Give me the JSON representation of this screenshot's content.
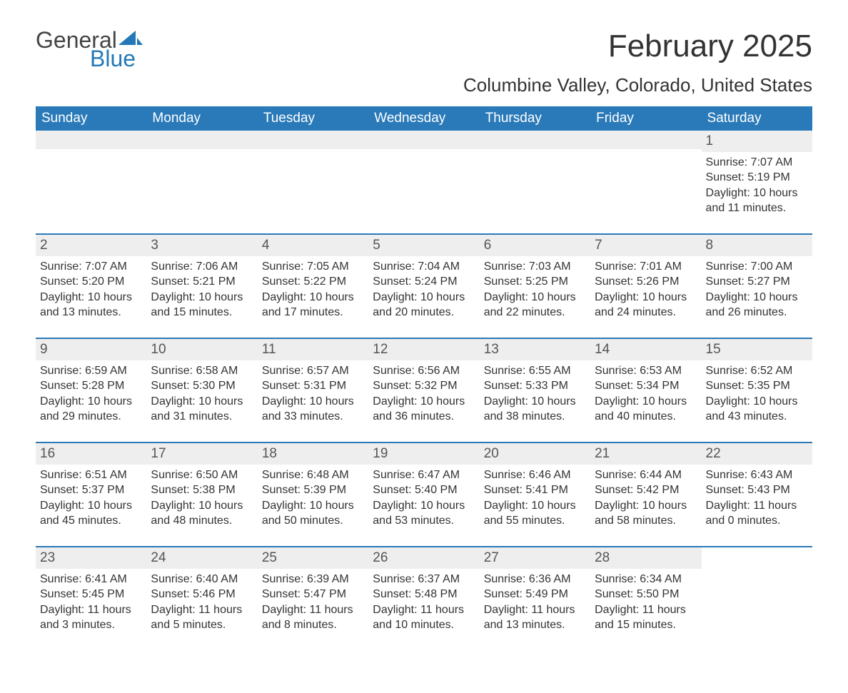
{
  "logo": {
    "text1": "General",
    "text2": "Blue",
    "shape_color": "#2478b8"
  },
  "title": "February 2025",
  "location": "Columbine Valley, Colorado, United States",
  "colors": {
    "header_bg": "#2a7ab9",
    "header_text": "#ffffff",
    "daynum_bg": "#eeeeee",
    "row_divider": "#2a7ab9",
    "text": "#333333"
  },
  "day_headers": [
    "Sunday",
    "Monday",
    "Tuesday",
    "Wednesday",
    "Thursday",
    "Friday",
    "Saturday"
  ],
  "weeks": [
    [
      null,
      null,
      null,
      null,
      null,
      null,
      {
        "n": "1",
        "sunrise": "Sunrise: 7:07 AM",
        "sunset": "Sunset: 5:19 PM",
        "daylight": "Daylight: 10 hours and 11 minutes."
      }
    ],
    [
      {
        "n": "2",
        "sunrise": "Sunrise: 7:07 AM",
        "sunset": "Sunset: 5:20 PM",
        "daylight": "Daylight: 10 hours and 13 minutes."
      },
      {
        "n": "3",
        "sunrise": "Sunrise: 7:06 AM",
        "sunset": "Sunset: 5:21 PM",
        "daylight": "Daylight: 10 hours and 15 minutes."
      },
      {
        "n": "4",
        "sunrise": "Sunrise: 7:05 AM",
        "sunset": "Sunset: 5:22 PM",
        "daylight": "Daylight: 10 hours and 17 minutes."
      },
      {
        "n": "5",
        "sunrise": "Sunrise: 7:04 AM",
        "sunset": "Sunset: 5:24 PM",
        "daylight": "Daylight: 10 hours and 20 minutes."
      },
      {
        "n": "6",
        "sunrise": "Sunrise: 7:03 AM",
        "sunset": "Sunset: 5:25 PM",
        "daylight": "Daylight: 10 hours and 22 minutes."
      },
      {
        "n": "7",
        "sunrise": "Sunrise: 7:01 AM",
        "sunset": "Sunset: 5:26 PM",
        "daylight": "Daylight: 10 hours and 24 minutes."
      },
      {
        "n": "8",
        "sunrise": "Sunrise: 7:00 AM",
        "sunset": "Sunset: 5:27 PM",
        "daylight": "Daylight: 10 hours and 26 minutes."
      }
    ],
    [
      {
        "n": "9",
        "sunrise": "Sunrise: 6:59 AM",
        "sunset": "Sunset: 5:28 PM",
        "daylight": "Daylight: 10 hours and 29 minutes."
      },
      {
        "n": "10",
        "sunrise": "Sunrise: 6:58 AM",
        "sunset": "Sunset: 5:30 PM",
        "daylight": "Daylight: 10 hours and 31 minutes."
      },
      {
        "n": "11",
        "sunrise": "Sunrise: 6:57 AM",
        "sunset": "Sunset: 5:31 PM",
        "daylight": "Daylight: 10 hours and 33 minutes."
      },
      {
        "n": "12",
        "sunrise": "Sunrise: 6:56 AM",
        "sunset": "Sunset: 5:32 PM",
        "daylight": "Daylight: 10 hours and 36 minutes."
      },
      {
        "n": "13",
        "sunrise": "Sunrise: 6:55 AM",
        "sunset": "Sunset: 5:33 PM",
        "daylight": "Daylight: 10 hours and 38 minutes."
      },
      {
        "n": "14",
        "sunrise": "Sunrise: 6:53 AM",
        "sunset": "Sunset: 5:34 PM",
        "daylight": "Daylight: 10 hours and 40 minutes."
      },
      {
        "n": "15",
        "sunrise": "Sunrise: 6:52 AM",
        "sunset": "Sunset: 5:35 PM",
        "daylight": "Daylight: 10 hours and 43 minutes."
      }
    ],
    [
      {
        "n": "16",
        "sunrise": "Sunrise: 6:51 AM",
        "sunset": "Sunset: 5:37 PM",
        "daylight": "Daylight: 10 hours and 45 minutes."
      },
      {
        "n": "17",
        "sunrise": "Sunrise: 6:50 AM",
        "sunset": "Sunset: 5:38 PM",
        "daylight": "Daylight: 10 hours and 48 minutes."
      },
      {
        "n": "18",
        "sunrise": "Sunrise: 6:48 AM",
        "sunset": "Sunset: 5:39 PM",
        "daylight": "Daylight: 10 hours and 50 minutes."
      },
      {
        "n": "19",
        "sunrise": "Sunrise: 6:47 AM",
        "sunset": "Sunset: 5:40 PM",
        "daylight": "Daylight: 10 hours and 53 minutes."
      },
      {
        "n": "20",
        "sunrise": "Sunrise: 6:46 AM",
        "sunset": "Sunset: 5:41 PM",
        "daylight": "Daylight: 10 hours and 55 minutes."
      },
      {
        "n": "21",
        "sunrise": "Sunrise: 6:44 AM",
        "sunset": "Sunset: 5:42 PM",
        "daylight": "Daylight: 10 hours and 58 minutes."
      },
      {
        "n": "22",
        "sunrise": "Sunrise: 6:43 AM",
        "sunset": "Sunset: 5:43 PM",
        "daylight": "Daylight: 11 hours and 0 minutes."
      }
    ],
    [
      {
        "n": "23",
        "sunrise": "Sunrise: 6:41 AM",
        "sunset": "Sunset: 5:45 PM",
        "daylight": "Daylight: 11 hours and 3 minutes."
      },
      {
        "n": "24",
        "sunrise": "Sunrise: 6:40 AM",
        "sunset": "Sunset: 5:46 PM",
        "daylight": "Daylight: 11 hours and 5 minutes."
      },
      {
        "n": "25",
        "sunrise": "Sunrise: 6:39 AM",
        "sunset": "Sunset: 5:47 PM",
        "daylight": "Daylight: 11 hours and 8 minutes."
      },
      {
        "n": "26",
        "sunrise": "Sunrise: 6:37 AM",
        "sunset": "Sunset: 5:48 PM",
        "daylight": "Daylight: 11 hours and 10 minutes."
      },
      {
        "n": "27",
        "sunrise": "Sunrise: 6:36 AM",
        "sunset": "Sunset: 5:49 PM",
        "daylight": "Daylight: 11 hours and 13 minutes."
      },
      {
        "n": "28",
        "sunrise": "Sunrise: 6:34 AM",
        "sunset": "Sunset: 5:50 PM",
        "daylight": "Daylight: 11 hours and 15 minutes."
      },
      null
    ]
  ]
}
